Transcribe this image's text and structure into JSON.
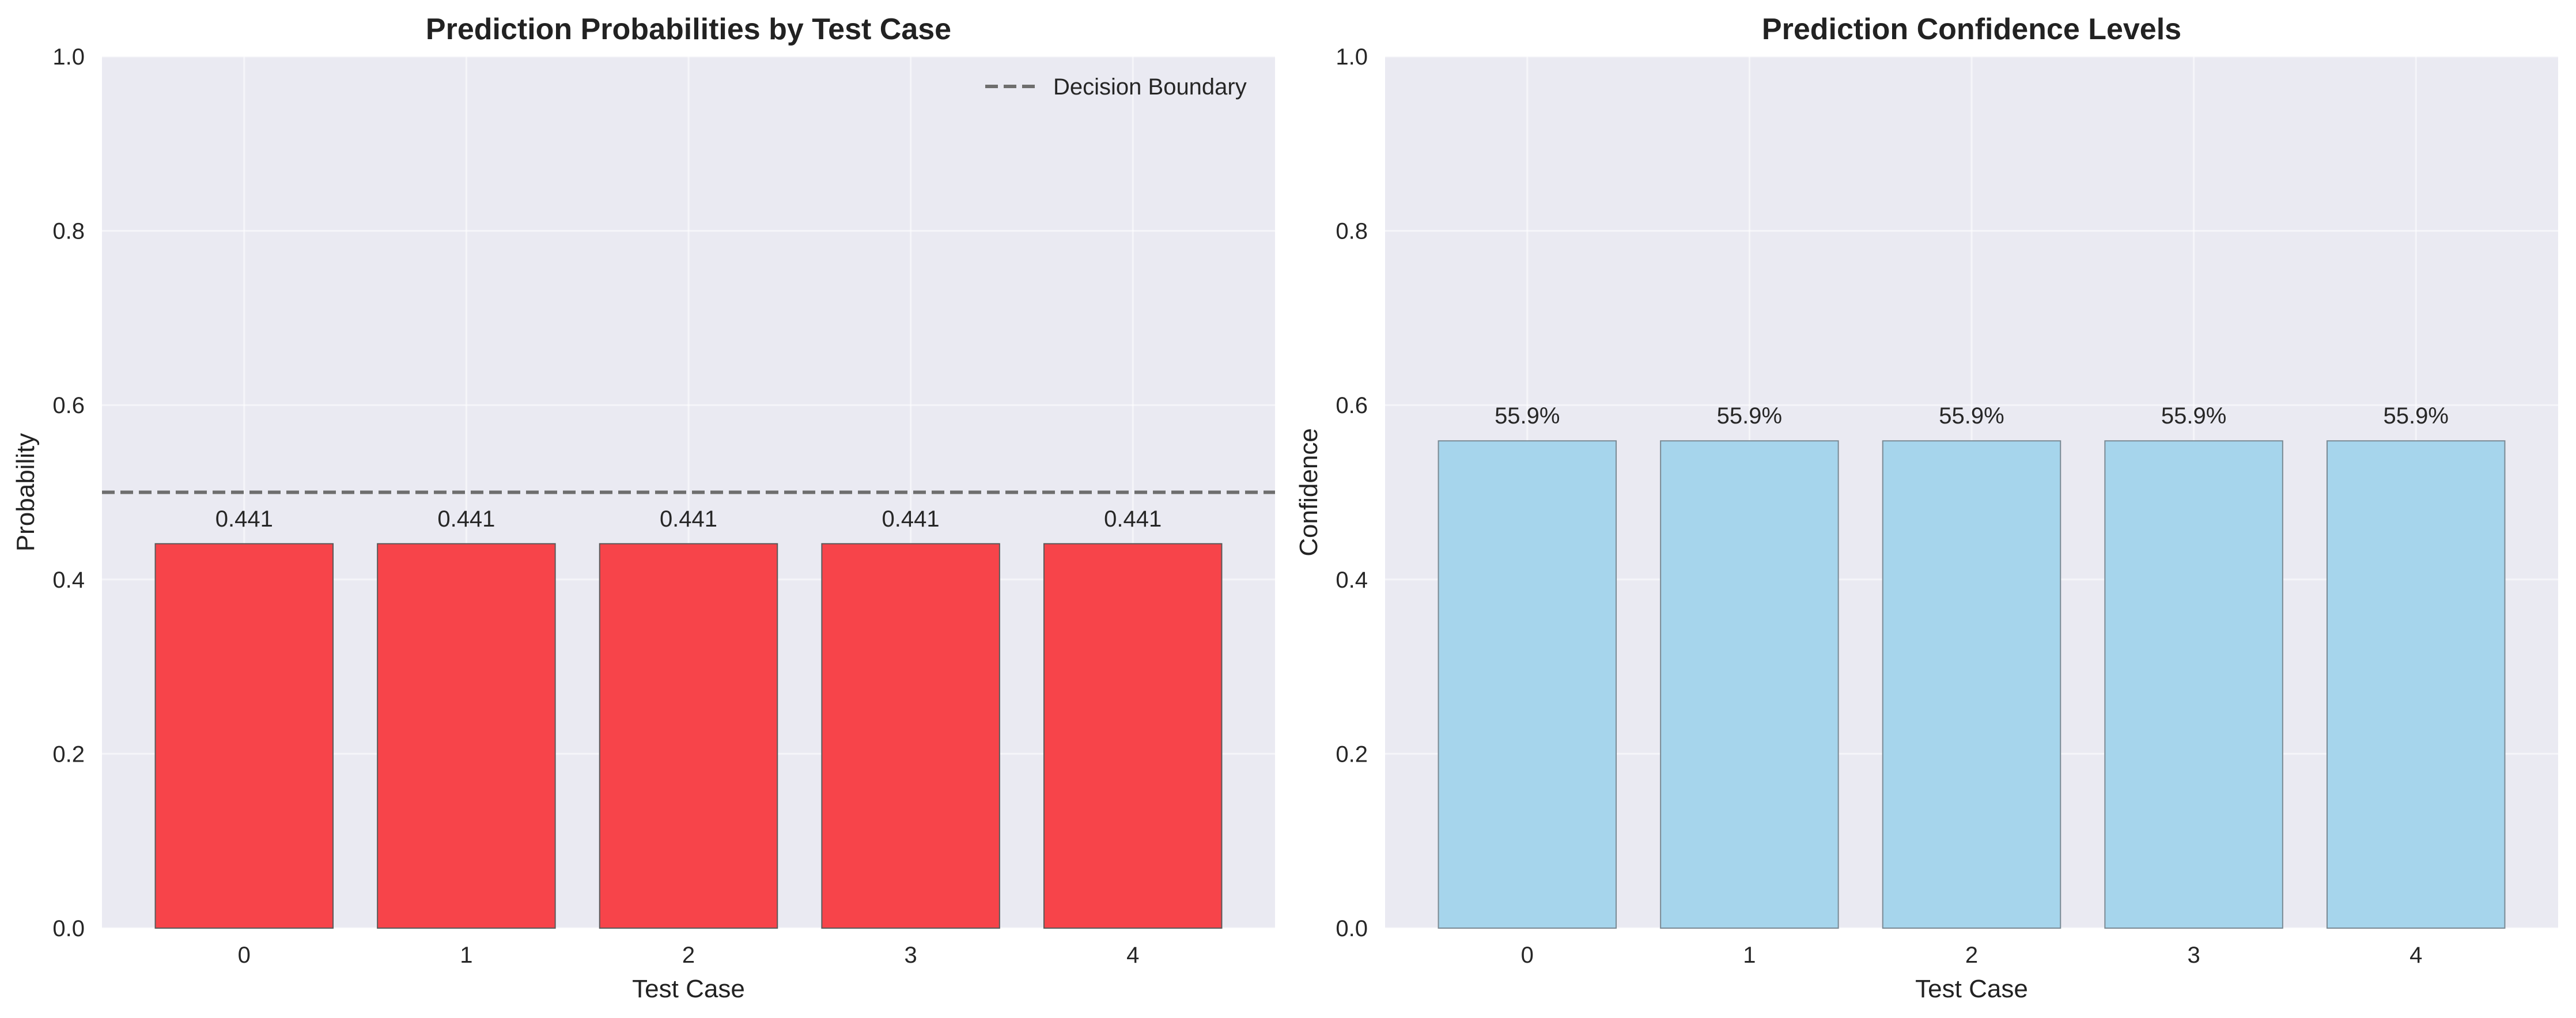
{
  "chart_data": [
    {
      "type": "bar",
      "title": "Prediction Probabilities by Test Case",
      "xlabel": "Test Case",
      "ylabel": "Probability",
      "categories": [
        "0",
        "1",
        "2",
        "3",
        "4"
      ],
      "values": [
        0.441,
        0.441,
        0.441,
        0.441,
        0.441
      ],
      "value_labels": [
        "0.441",
        "0.441",
        "0.441",
        "0.441",
        "0.441"
      ],
      "yticks": [
        "0.0",
        "0.2",
        "0.4",
        "0.6",
        "0.8",
        "1.0"
      ],
      "ylim": [
        0,
        1.0
      ],
      "xlim": [
        -0.64,
        4.64
      ],
      "bar_width": 0.8,
      "bar_color": "#f7444a",
      "bar_edge_color": "#5a5a5a",
      "grid": true,
      "background": "#eaeaf2",
      "reference_line": {
        "y": 0.5,
        "style": "dashed",
        "color": "#6e6e6e",
        "label": "Decision Boundary"
      },
      "legend": {
        "position": "top-right",
        "entries": [
          "Decision Boundary"
        ]
      }
    },
    {
      "type": "bar",
      "title": "Prediction Confidence Levels",
      "xlabel": "Test Case",
      "ylabel": "Confidence",
      "categories": [
        "0",
        "1",
        "2",
        "3",
        "4"
      ],
      "values": [
        0.559,
        0.559,
        0.559,
        0.559,
        0.559
      ],
      "value_labels": [
        "55.9%",
        "55.9%",
        "55.9%",
        "55.9%",
        "55.9%"
      ],
      "yticks": [
        "0.0",
        "0.2",
        "0.4",
        "0.6",
        "0.8",
        "1.0"
      ],
      "ylim": [
        0,
        1.0
      ],
      "xlim": [
        -0.64,
        4.64
      ],
      "bar_width": 0.8,
      "bar_color": "#a6d5ec",
      "bar_edge_color": "#7a8a94",
      "grid": true,
      "background": "#eaeaf2"
    }
  ]
}
